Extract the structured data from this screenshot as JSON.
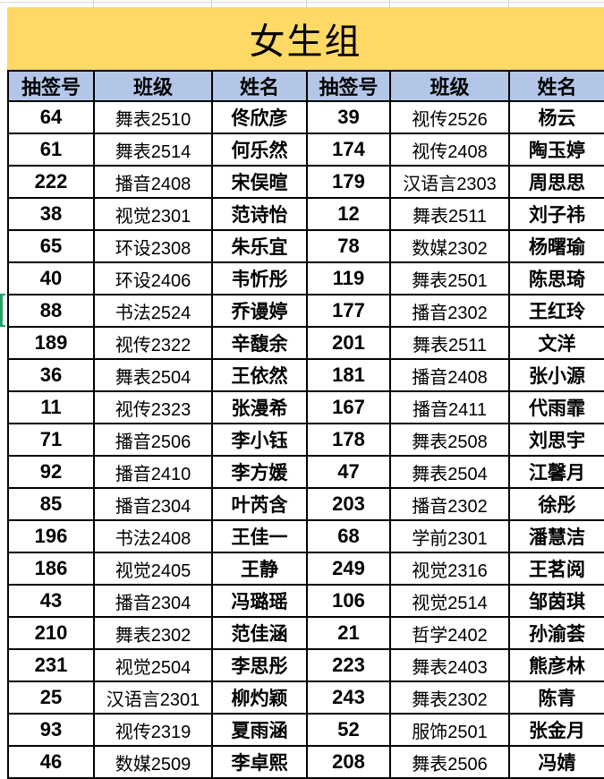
{
  "title": "女生组",
  "columns": [
    "抽签号",
    "班级",
    "姓名",
    "抽签号",
    "班级",
    "姓名"
  ],
  "rows": [
    [
      "64",
      "舞表2510",
      "佟欣彦",
      "39",
      "视传2526",
      "杨云"
    ],
    [
      "61",
      "舞表2514",
      "何乐然",
      "174",
      "视传2408",
      "陶玉婷"
    ],
    [
      "222",
      "播音2408",
      "宋俣暄",
      "179",
      "汉语言2303",
      "周思思"
    ],
    [
      "38",
      "视觉2301",
      "范诗怡",
      "12",
      "舞表2511",
      "刘子祎"
    ],
    [
      "65",
      "环设2308",
      "朱乐宜",
      "78",
      "数媒2302",
      "杨曙瑜"
    ],
    [
      "40",
      "环设2406",
      "韦忻彤",
      "119",
      "舞表2501",
      "陈思琦"
    ],
    [
      "88",
      "书法2524",
      "乔谩婷",
      "177",
      "播音2302",
      "王红玲"
    ],
    [
      "189",
      "视传2322",
      "辛馥余",
      "201",
      "舞表2511",
      "文洋"
    ],
    [
      "36",
      "舞表2504",
      "王依然",
      "181",
      "播音2408",
      "张小源"
    ],
    [
      "11",
      "视传2323",
      "张漫希",
      "167",
      "播音2411",
      "代雨霏"
    ],
    [
      "71",
      "播音2506",
      "李小钰",
      "178",
      "舞表2508",
      "刘思宇"
    ],
    [
      "92",
      "播音2410",
      "李方媛",
      "47",
      "舞表2504",
      "江馨月"
    ],
    [
      "85",
      "播音2304",
      "叶芮含",
      "203",
      "播音2302",
      "徐彤"
    ],
    [
      "196",
      "书法2408",
      "王佳一",
      "68",
      "学前2301",
      "潘慧洁"
    ],
    [
      "186",
      "视觉2405",
      "王静",
      "249",
      "视觉2316",
      "王茗阅"
    ],
    [
      "43",
      "播音2304",
      "冯璐瑶",
      "106",
      "视觉2514",
      "邹茵琪"
    ],
    [
      "210",
      "舞表2302",
      "范佳涵",
      "21",
      "哲学2402",
      "孙渝荟"
    ],
    [
      "231",
      "视觉2504",
      "李思彤",
      "223",
      "舞表2403",
      "熊彦林"
    ],
    [
      "25",
      "汉语言2301",
      "柳灼颖",
      "243",
      "舞表2302",
      "陈青"
    ],
    [
      "93",
      "视传2319",
      "夏雨涵",
      "52",
      "服饰2501",
      "张金月"
    ],
    [
      "46",
      "数媒2509",
      "李卓熙",
      "208",
      "舞表2506",
      "冯婧"
    ]
  ],
  "selection": {
    "row_index": 6,
    "marked_value": "88"
  },
  "colors": {
    "title_bg": "#FFD966",
    "header_bg": "#B4C6E7",
    "selection_green": "#21A366",
    "border": "#000000"
  }
}
